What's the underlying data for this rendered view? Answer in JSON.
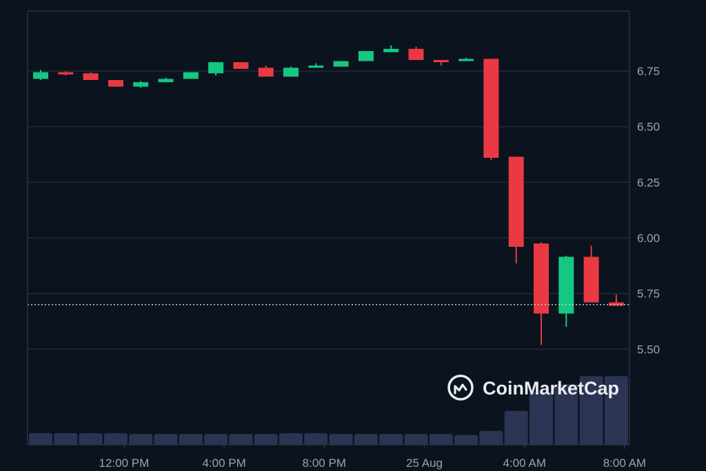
{
  "chart_data": {
    "type": "candlestick",
    "title": "",
    "xlabel": "",
    "ylabel": "",
    "y_ticks": [
      "5.50",
      "5.75",
      "6.00",
      "6.25",
      "6.50",
      "6.75"
    ],
    "y_tick_values": [
      5.5,
      5.75,
      6.0,
      6.25,
      6.5,
      6.75
    ],
    "ylim": [
      5.07,
      7.02
    ],
    "grid": true,
    "x_ticks": [
      {
        "label": "12:00 PM",
        "candle_index": 3
      },
      {
        "label": "4:00 PM",
        "candle_index": 7
      },
      {
        "label": "8:00 PM",
        "candle_index": 11
      },
      {
        "label": "25 Aug",
        "candle_index": 15
      },
      {
        "label": "4:00 AM",
        "candle_index": 19
      },
      {
        "label": "8:00 AM",
        "candle_index": 23
      }
    ],
    "current_price": 5.7,
    "up_color": "#16c784",
    "down_color": "#ea3943",
    "volume_color": "#2b3553",
    "candles": [
      {
        "o": 6.715,
        "h": 6.755,
        "l": 6.71,
        "c": 6.745
      },
      {
        "o": 6.745,
        "h": 6.75,
        "l": 6.73,
        "c": 6.735
      },
      {
        "o": 6.74,
        "h": 6.745,
        "l": 6.71,
        "c": 6.71
      },
      {
        "o": 6.71,
        "h": 6.71,
        "l": 6.68,
        "c": 6.68
      },
      {
        "o": 6.68,
        "h": 6.705,
        "l": 6.675,
        "c": 6.7
      },
      {
        "o": 6.7,
        "h": 6.72,
        "l": 6.7,
        "c": 6.715
      },
      {
        "o": 6.715,
        "h": 6.74,
        "l": 6.715,
        "c": 6.745
      },
      {
        "o": 6.74,
        "h": 6.79,
        "l": 6.73,
        "c": 6.79
      },
      {
        "o": 6.79,
        "h": 6.79,
        "l": 6.76,
        "c": 6.76
      },
      {
        "o": 6.765,
        "h": 6.775,
        "l": 6.725,
        "c": 6.725
      },
      {
        "o": 6.725,
        "h": 6.77,
        "l": 6.725,
        "c": 6.765
      },
      {
        "o": 6.765,
        "h": 6.785,
        "l": 6.765,
        "c": 6.775
      },
      {
        "o": 6.77,
        "h": 6.795,
        "l": 6.77,
        "c": 6.795
      },
      {
        "o": 6.795,
        "h": 6.84,
        "l": 6.795,
        "c": 6.84
      },
      {
        "o": 6.835,
        "h": 6.865,
        "l": 6.835,
        "c": 6.85
      },
      {
        "o": 6.85,
        "h": 6.86,
        "l": 6.8,
        "c": 6.8
      },
      {
        "o": 6.8,
        "h": 6.8,
        "l": 6.775,
        "c": 6.79
      },
      {
        "o": 6.795,
        "h": 6.81,
        "l": 6.795,
        "c": 6.805
      },
      {
        "o": 6.805,
        "h": 6.805,
        "l": 6.35,
        "c": 6.36
      },
      {
        "o": 6.365,
        "h": 6.365,
        "l": 5.885,
        "c": 5.96
      },
      {
        "o": 5.975,
        "h": 5.98,
        "l": 5.52,
        "c": 5.66
      },
      {
        "o": 5.66,
        "h": 5.92,
        "l": 5.6,
        "c": 5.915
      },
      {
        "o": 5.915,
        "h": 5.965,
        "l": 5.71,
        "c": 5.71
      },
      {
        "o": 5.71,
        "h": 5.745,
        "l": 5.695,
        "c": 5.695
      }
    ],
    "volumes": [
      0.14,
      0.14,
      0.14,
      0.14,
      0.13,
      0.13,
      0.13,
      0.13,
      0.13,
      0.13,
      0.14,
      0.14,
      0.13,
      0.13,
      0.13,
      0.13,
      0.13,
      0.12,
      0.17,
      0.41,
      0.64,
      0.73,
      0.83,
      0.83
    ]
  },
  "watermark": {
    "brand": "CoinMarketCap",
    "logo_icon": "coinmarketcap-logo-icon"
  }
}
